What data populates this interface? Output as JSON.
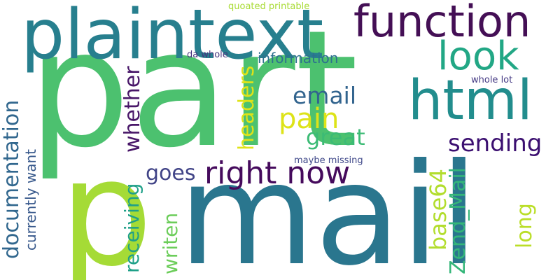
{
  "words": [
    {
      "text": "part",
      "color": "#4cc16f"
    },
    {
      "text": "mail",
      "color": "#2a768e"
    },
    {
      "text": "plaintext",
      "color": "#277f8e"
    },
    {
      "text": "function",
      "color": "#440f55"
    },
    {
      "text": "p",
      "color": "#a5db36"
    },
    {
      "text": "html",
      "color": "#228d8d"
    },
    {
      "text": "look",
      "color": "#22a785"
    },
    {
      "text": "right now",
      "color": "#450a5c"
    },
    {
      "text": "email",
      "color": "#32648e"
    },
    {
      "text": "pain",
      "color": "#dde318"
    },
    {
      "text": "great",
      "color": "#3cbb75"
    },
    {
      "text": "sending",
      "color": "#3b0f70"
    },
    {
      "text": "goes",
      "color": "#414487"
    },
    {
      "text": "information",
      "color": "#2d708e"
    },
    {
      "text": "documentation",
      "color": "#31678e"
    },
    {
      "text": "currently want",
      "color": "#38598c"
    },
    {
      "text": "whether",
      "color": "#481668"
    },
    {
      "text": "receiving",
      "color": "#1fa088"
    },
    {
      "text": "writen",
      "color": "#6ccd5a"
    },
    {
      "text": "headers",
      "color": "#dfe318"
    },
    {
      "text": "base64",
      "color": "#b2dd2d"
    },
    {
      "text": "Zend_Mail",
      "color": "#34b679"
    },
    {
      "text": "long",
      "color": "#bade28"
    },
    {
      "text": "quoated printable",
      "color": "#a8db34"
    },
    {
      "text": "da whole",
      "color": "#46337e"
    },
    {
      "text": "whole lot",
      "color": "#443983"
    },
    {
      "text": "maybe missing",
      "color": "#3f4889"
    }
  ]
}
